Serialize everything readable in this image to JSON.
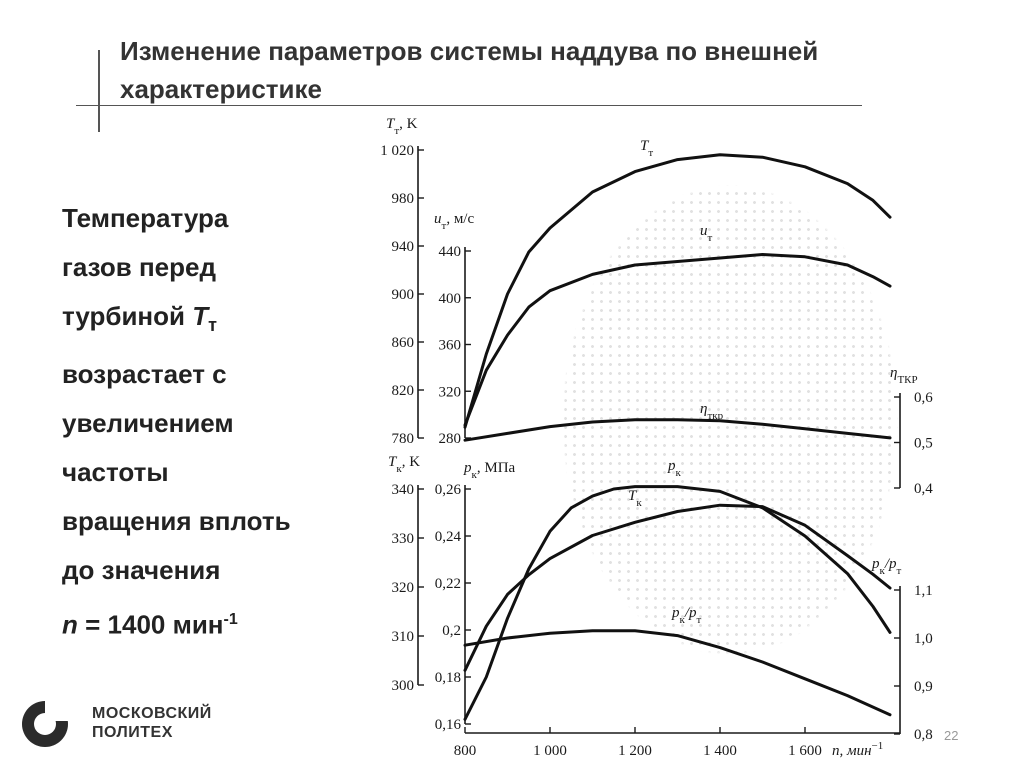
{
  "title": "Изменение параметров системы наддува по внешней характеристике",
  "body": {
    "line1": "Температура",
    "line2": "газов перед",
    "line3": "турбиной",
    "Tt_symbol": "T",
    "Tt_sub": "т",
    "line4": "возрастает с",
    "line5": "увеличением",
    "line6": "частоты",
    "line7": "вращения вплоть",
    "line8": "до значения",
    "n_symbol": "n",
    "n_value": " = 1400 мин",
    "n_exp": "-1"
  },
  "logo": {
    "line1": "МОСКОВСКИЙ",
    "line2": "ПОЛИТЕХ"
  },
  "page_number": "22",
  "chart_data": {
    "type": "line",
    "x": {
      "label": "n, мин",
      "label_exp": "−1",
      "ticks": [
        "800",
        "1 000",
        "1 200",
        "1 400",
        "1 600"
      ],
      "range": [
        800,
        1800
      ]
    },
    "axes": [
      {
        "id": "Tt",
        "label": "T",
        "label_sub": "т",
        "label_unit": ", K",
        "range": [
          780,
          1020
        ],
        "ticks": [
          "780",
          "820",
          "860",
          "900",
          "940",
          "980",
          "1 020"
        ]
      },
      {
        "id": "ut",
        "label": "u",
        "label_sub": "т",
        "label_unit": ", м/с",
        "range": [
          280,
          440
        ],
        "ticks": [
          "280",
          "320",
          "360",
          "400",
          "440"
        ]
      },
      {
        "id": "eta",
        "label": "η",
        "label_sub": "ТКР",
        "range": [
          0.4,
          0.6
        ],
        "ticks": [
          "0,4",
          "0,5",
          "0,6"
        ]
      },
      {
        "id": "Tk",
        "label": "T",
        "label_sub": "к",
        "label_unit": ", K",
        "range": [
          300,
          340
        ],
        "ticks": [
          "300",
          "310",
          "320",
          "330",
          "340"
        ]
      },
      {
        "id": "pk",
        "label": "p",
        "label_sub": "к",
        "label_unit": ", МПа",
        "range": [
          0.16,
          0.26
        ],
        "ticks": [
          "0,16",
          "0,18",
          "0,2",
          "0,22",
          "0,24",
          "0,26"
        ]
      },
      {
        "id": "pkpt",
        "label": "p",
        "label_sub": "к",
        "label_mid": "/p",
        "label_sub2": "т",
        "range": [
          0.8,
          1.1
        ],
        "ticks": [
          "0,8",
          "0,9",
          "1,0",
          "1,1"
        ]
      }
    ],
    "series": [
      {
        "name": "T",
        "name_sub": "т",
        "axis": "Tt",
        "x": [
          800,
          850,
          900,
          950,
          1000,
          1100,
          1200,
          1300,
          1400,
          1500,
          1600,
          1700,
          1760,
          1800
        ],
        "y": [
          789,
          850,
          900,
          935,
          955,
          985,
          1002,
          1012,
          1016,
          1014,
          1006,
          992,
          978,
          964
        ]
      },
      {
        "name": "u",
        "name_sub": "т",
        "axis": "ut",
        "x": [
          800,
          850,
          900,
          950,
          1000,
          1100,
          1200,
          1300,
          1400,
          1500,
          1600,
          1700,
          1760,
          1800
        ],
        "y": [
          291,
          338,
          368,
          392,
          406,
          420,
          428,
          431,
          434,
          437,
          435,
          428,
          418,
          410
        ]
      },
      {
        "name": "η",
        "name_sub": "ткр",
        "axis": "eta",
        "x": [
          800,
          900,
          1000,
          1100,
          1200,
          1300,
          1400,
          1500,
          1600,
          1700,
          1800
        ],
        "y": [
          0.505,
          0.52,
          0.535,
          0.545,
          0.55,
          0.55,
          0.548,
          0.54,
          0.53,
          0.52,
          0.51
        ]
      },
      {
        "name": "p",
        "name_sub": "к",
        "axis": "pk",
        "x": [
          800,
          850,
          900,
          950,
          1000,
          1050,
          1100,
          1150,
          1200,
          1300,
          1400,
          1500,
          1600,
          1700,
          1760,
          1800
        ],
        "y": [
          0.162,
          0.18,
          0.205,
          0.226,
          0.242,
          0.252,
          0.257,
          0.26,
          0.261,
          0.261,
          0.259,
          0.252,
          0.24,
          0.224,
          0.21,
          0.199
        ]
      },
      {
        "name": "T",
        "name_sub": "к",
        "axis": "Tk",
        "x": [
          800,
          850,
          900,
          950,
          1000,
          1100,
          1200,
          1300,
          1400,
          1500,
          1600,
          1700,
          1760,
          1800
        ],
        "y": [
          303,
          312,
          318.5,
          322.5,
          325.8,
          330.5,
          333.2,
          335.4,
          336.7,
          336.4,
          332.6,
          326.4,
          322.6,
          319.8
        ]
      },
      {
        "name": "p",
        "name_sub": "к",
        "name_mid": "/p",
        "name_sub2": "т",
        "axis": "pkpt",
        "x": [
          800,
          900,
          1000,
          1100,
          1200,
          1300,
          1400,
          1500,
          1600,
          1700,
          1800
        ],
        "y": [
          0.985,
          1.0,
          1.01,
          1.015,
          1.015,
          1.005,
          0.98,
          0.95,
          0.915,
          0.88,
          0.84
        ]
      }
    ]
  }
}
